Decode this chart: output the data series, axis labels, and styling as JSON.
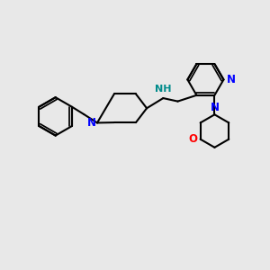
{
  "bg_color": "#e8e8e8",
  "bond_color": "#000000",
  "N_color": "#0000ff",
  "NH_color": "#008b8b",
  "O_color": "#ff0000",
  "line_width": 1.5,
  "font_size": 8.5,
  "fig_width": 3.0,
  "fig_height": 3.0,
  "dpi": 100,
  "xlim": [
    0,
    10
  ],
  "ylim": [
    0,
    10
  ]
}
